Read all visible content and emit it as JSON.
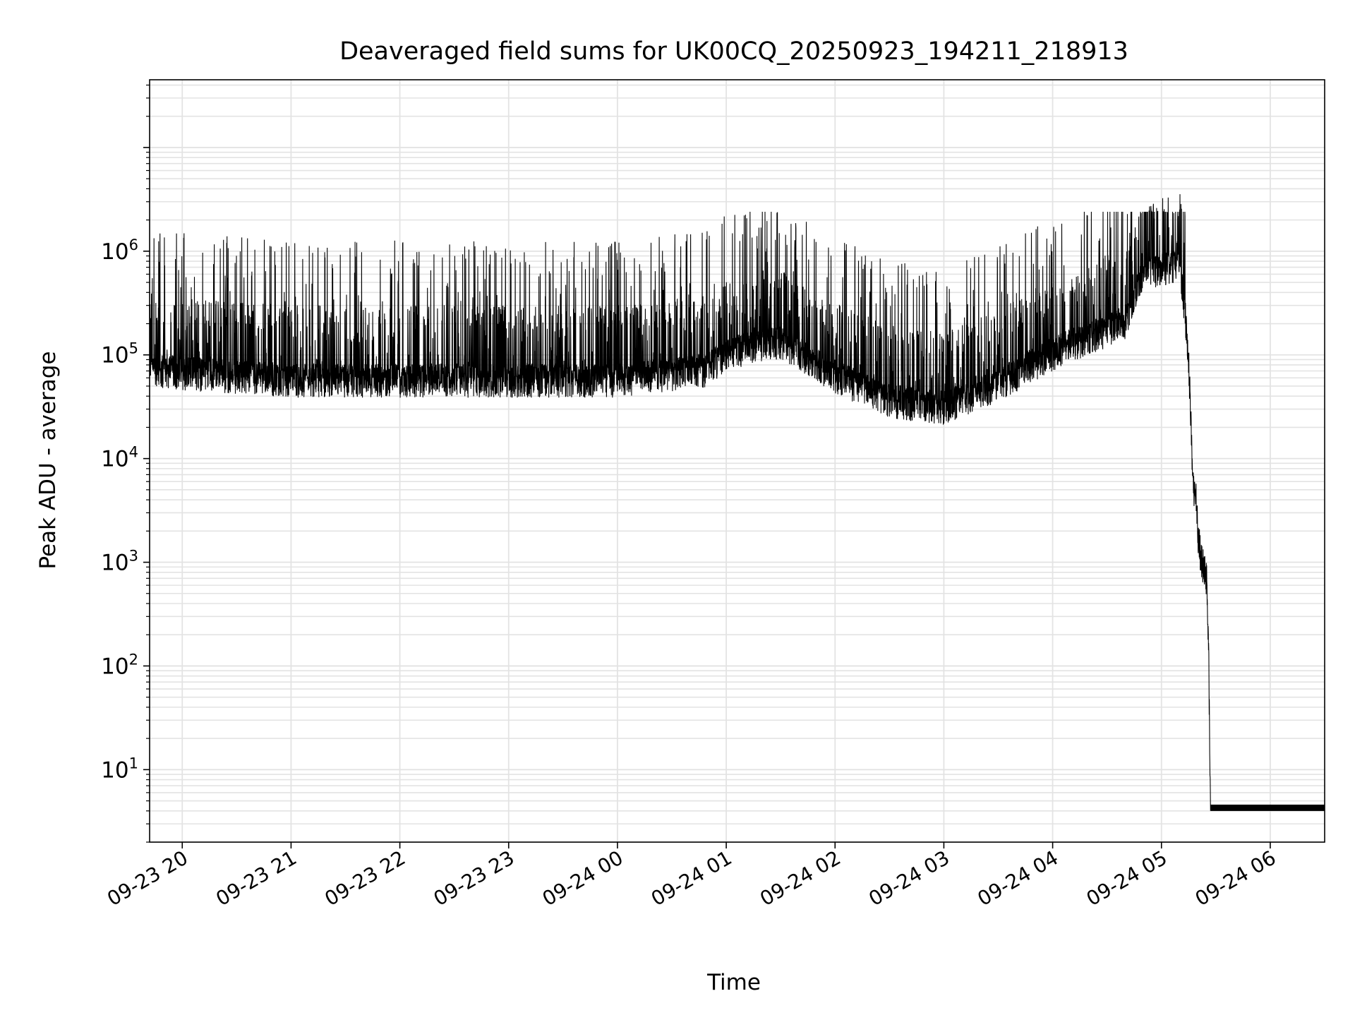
{
  "chart_data": {
    "type": "line",
    "title": "Deaveraged field sums for UK00CQ_20250923_194211_218913",
    "xlabel": "Time",
    "ylabel": "Peak ADU - average",
    "y_scale": "log",
    "ylim": [
      2,
      45000000
    ],
    "xlim": [
      "2025-09-23 19:42",
      "2025-09-24 06:30"
    ],
    "grid": "on (major and minor)",
    "line_color": "#000000",
    "x_ticks": [
      {
        "t": "2025-09-23 20:00",
        "label": "09-23 20"
      },
      {
        "t": "2025-09-23 21:00",
        "label": "09-23 21"
      },
      {
        "t": "2025-09-23 22:00",
        "label": "09-23 22"
      },
      {
        "t": "2025-09-23 23:00",
        "label": "09-23 23"
      },
      {
        "t": "2025-09-24 00:00",
        "label": "09-24 00"
      },
      {
        "t": "2025-09-24 01:00",
        "label": "09-24 01"
      },
      {
        "t": "2025-09-24 02:00",
        "label": "09-24 02"
      },
      {
        "t": "2025-09-24 03:00",
        "label": "09-24 03"
      },
      {
        "t": "2025-09-24 04:00",
        "label": "09-24 04"
      },
      {
        "t": "2025-09-24 05:00",
        "label": "09-24 05"
      },
      {
        "t": "2025-09-24 06:00",
        "label": "09-24 06"
      }
    ],
    "y_ticks": [
      {
        "value": 10,
        "base": "10",
        "exp": "1"
      },
      {
        "value": 100,
        "base": "10",
        "exp": "2"
      },
      {
        "value": 1000,
        "base": "10",
        "exp": "3"
      },
      {
        "value": 10000,
        "base": "10",
        "exp": "4"
      },
      {
        "value": 100000,
        "base": "10",
        "exp": "5"
      },
      {
        "value": 1000000,
        "base": "10",
        "exp": "6"
      }
    ],
    "series": [
      {
        "baseline_points": [
          {
            "t": "2025-09-23 19:42",
            "y": 70000
          },
          {
            "t": "2025-09-23 20:00",
            "y": 65000
          },
          {
            "t": "2025-09-23 21:00",
            "y": 55000
          },
          {
            "t": "2025-09-23 22:00",
            "y": 55000
          },
          {
            "t": "2025-09-23 23:00",
            "y": 55000
          },
          {
            "t": "2025-09-24 00:00",
            "y": 55000
          },
          {
            "t": "2025-09-24 00:50",
            "y": 70000
          },
          {
            "t": "2025-09-24 01:00",
            "y": 100000
          },
          {
            "t": "2025-09-24 01:30",
            "y": 130000
          },
          {
            "t": "2025-09-24 02:00",
            "y": 60000
          },
          {
            "t": "2025-09-24 02:30",
            "y": 35000
          },
          {
            "t": "2025-09-24 03:00",
            "y": 30000
          },
          {
            "t": "2025-09-24 03:30",
            "y": 50000
          },
          {
            "t": "2025-09-24 04:00",
            "y": 100000
          },
          {
            "t": "2025-09-24 04:40",
            "y": 200000
          },
          {
            "t": "2025-09-24 04:50",
            "y": 600000
          },
          {
            "t": "2025-09-24 05:10",
            "y": 700000
          },
          {
            "t": "2025-09-24 05:13",
            "y": 250000
          },
          {
            "t": "2025-09-24 05:15",
            "y": 80000
          },
          {
            "t": "2025-09-24 05:16",
            "y": 30000
          },
          {
            "t": "2025-09-24 05:17",
            "y": 8000
          },
          {
            "t": "2025-09-24 05:18",
            "y": 5000
          },
          {
            "t": "2025-09-24 05:19",
            "y": 4500
          },
          {
            "t": "2025-09-24 05:20",
            "y": 2000
          },
          {
            "t": "2025-09-24 05:22",
            "y": 1000
          },
          {
            "t": "2025-09-24 05:25",
            "y": 700
          },
          {
            "t": "2025-09-24 05:26",
            "y": 150
          },
          {
            "t": "2025-09-24 05:27",
            "y": 4
          },
          {
            "t": "2025-09-24 06:30",
            "y": 4
          }
        ],
        "spike_max": 2400000
      }
    ]
  }
}
